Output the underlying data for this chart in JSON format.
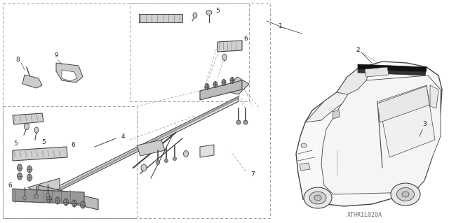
{
  "bg_color": "#ffffff",
  "line_color": "#444444",
  "dashed_color": "#999999",
  "text_color": "#222222",
  "watermark": "XTHR1L020A",
  "fig_width": 6.4,
  "fig_height": 3.19,
  "dpi": 100
}
